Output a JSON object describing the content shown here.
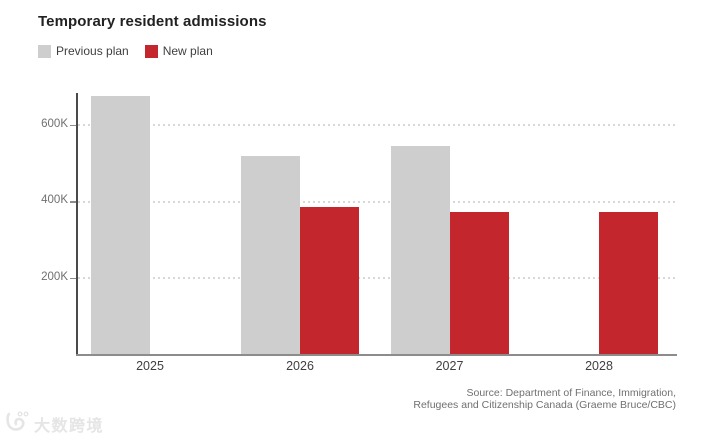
{
  "chart_data": {
    "type": "bar",
    "title": "Temporary resident admissions",
    "categories": [
      "2025",
      "2026",
      "2027",
      "2028"
    ],
    "series": [
      {
        "name": "Previous plan",
        "color": "#cecece",
        "values": [
          673650,
          516600,
          543600,
          null
        ]
      },
      {
        "name": "New plan",
        "color": "#c4262e",
        "values": [
          null,
          385000,
          370000,
          370000
        ]
      }
    ],
    "y_ticks": [
      {
        "value": 200000,
        "label": "200K"
      },
      {
        "value": 400000,
        "label": "400K"
      },
      {
        "value": 600000,
        "label": "600K"
      }
    ],
    "ylim": [
      0,
      700000
    ],
    "grid": "horizontal-dotted",
    "legend_position": "top-left",
    "source": [
      "Source: Department of Finance, Immigration,",
      "Refugees and Citizenship Canada (Graeme Bruce/CBC)"
    ]
  },
  "watermark": {
    "text": "大数跨境"
  },
  "colors": {
    "previous_plan": "#cecece",
    "new_plan": "#c4262e",
    "axis": "#4a4a4a",
    "baseline": "#8c8c8c",
    "grid": "#d8d8d8",
    "title_text": "#222222",
    "label_text": "#404040",
    "muted_text": "#707070",
    "watermark": "#e5e5e5"
  }
}
